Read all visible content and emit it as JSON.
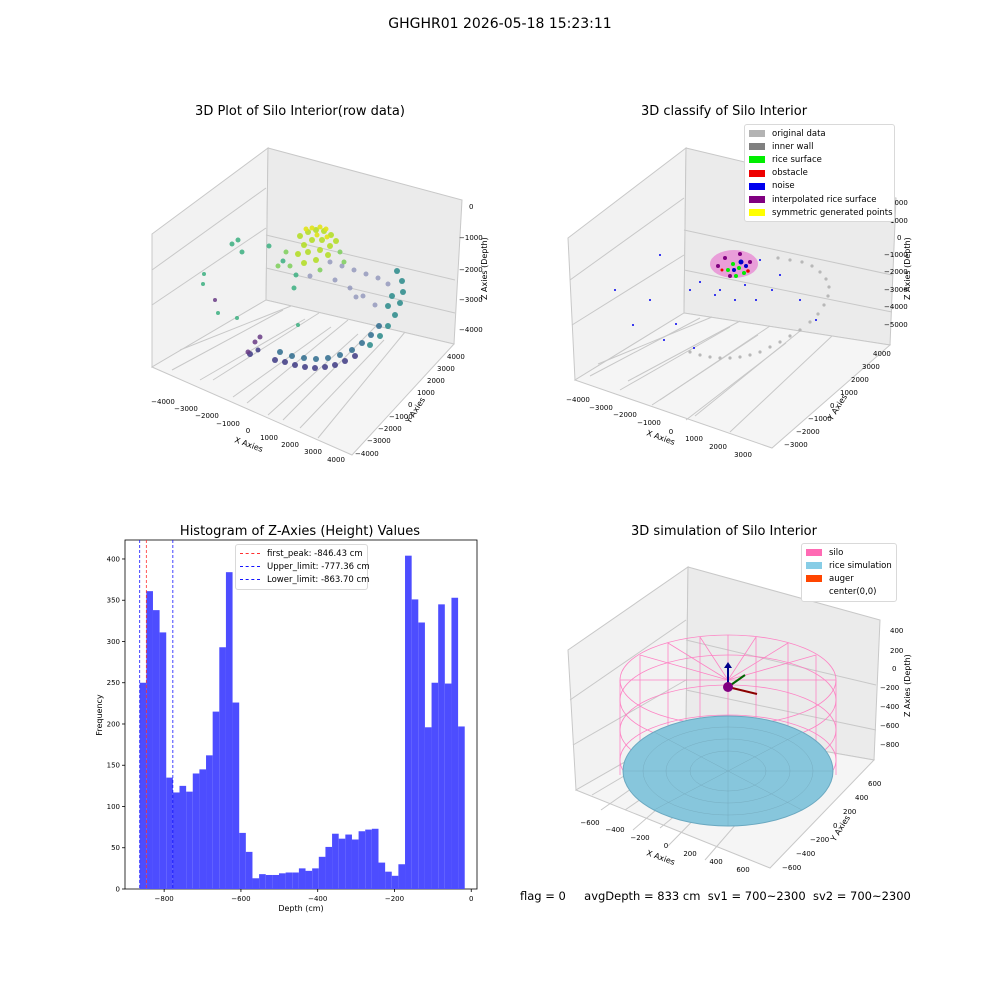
{
  "figure": {
    "suptitle": "GHGHR01 2026-05-18 15:23:11",
    "footer": {
      "flag": "flag = 0",
      "avg_depth": "avgDepth = 833 cm",
      "sv1": "sv1 = 700~2300",
      "sv2": "sv2 = 700~2300"
    }
  },
  "chart_data": [
    {
      "type": "scatter",
      "title": "3D Plot of Silo Interior(row data)",
      "xlabel": "X Axies",
      "ylabel": "Y Axies",
      "zlabel": "Z Axies (Depth)",
      "x_ticks": [
        "−4000",
        "−3000",
        "−2000",
        "−1000",
        "0",
        "1000",
        "2000",
        "3000",
        "4000"
      ],
      "y_ticks": [
        "−4000",
        "−3000",
        "−2000",
        "−1000",
        "0",
        "1000",
        "2000",
        "3000",
        "4000"
      ],
      "z_ticks": [
        "0",
        "−1000",
        "−2000",
        "−3000",
        "−4000"
      ],
      "colormap": "viridis"
    },
    {
      "type": "scatter",
      "title": "3D classify of Silo Interior",
      "xlabel": "X Axies",
      "ylabel": "Y Axies",
      "zlabel": "Z Axies (Depth)",
      "x_ticks": [
        "−4000",
        "−3000",
        "−2000",
        "−1000",
        "0",
        "1000",
        "2000",
        "3000"
      ],
      "y_ticks": [
        "−3000",
        "−2000",
        "−1000",
        "0",
        "1000",
        "2000",
        "3000",
        "4000"
      ],
      "z_ticks": [
        "2000",
        "1000",
        "0",
        "−1000",
        "−2000",
        "−3000",
        "−4000",
        "−5000"
      ],
      "legend": [
        {
          "label": "original data",
          "color": "#b3b3b3"
        },
        {
          "label": "inner wall",
          "color": "#808080"
        },
        {
          "label": "rice surface",
          "color": "#00ee00"
        },
        {
          "label": "obstacle",
          "color": "#ee0000"
        },
        {
          "label": "noise",
          "color": "#0000ee"
        },
        {
          "label": "interpolated rice surface",
          "color": "#800080"
        },
        {
          "label": "symmetric generated points",
          "color": "#ffff00"
        }
      ]
    },
    {
      "type": "bar",
      "title": "Histogram of Z-Axies (Height) Values",
      "xlabel": "Depth (cm)",
      "ylabel": "Frequency",
      "xlim": [
        -902,
        15
      ],
      "ylim": [
        0,
        423
      ],
      "x_ticks": [
        -800,
        -600,
        -400,
        -200,
        0
      ],
      "x_tick_labels": [
        "−800",
        "−600",
        "−400",
        "−200",
        "0"
      ],
      "y_ticks": [
        0,
        50,
        100,
        150,
        200,
        250,
        300,
        350,
        400
      ],
      "bar_color": "#4d4dff",
      "bin_start": -863.7,
      "bin_width": 17.28,
      "values": [
        250,
        361,
        338,
        311,
        135,
        117,
        125,
        118,
        140,
        145,
        162,
        215,
        293,
        384,
        226,
        68,
        45,
        13,
        18,
        17,
        17,
        19,
        20,
        20,
        25,
        22,
        25,
        39,
        51,
        67,
        61,
        66,
        60,
        70,
        72,
        73,
        32,
        21,
        16,
        30,
        404,
        351,
        323,
        196,
        250,
        345,
        249,
        353,
        197
      ],
      "vlines": [
        {
          "label": "first_peak: -846.43 cm",
          "x": -846.43,
          "color": "#ff3030"
        },
        {
          "label": "Upper_limit: -777.36 cm",
          "x": -777.36,
          "color": "#1414ff"
        },
        {
          "label": "Lower_limit: -863.70 cm",
          "x": -863.7,
          "color": "#1414ff"
        }
      ]
    },
    {
      "type": "scatter",
      "title": "3D simulation of Silo Interior",
      "xlabel": "X Axies",
      "ylabel": "Y Axies",
      "zlabel": "Z Axies (Depth)",
      "x_ticks": [
        "−600",
        "−400",
        "−200",
        "0",
        "200",
        "400",
        "600"
      ],
      "y_ticks": [
        "−600",
        "−400",
        "−200",
        "0",
        "200",
        "400",
        "600"
      ],
      "z_ticks": [
        "400",
        "200",
        "0",
        "−200",
        "−400",
        "−600",
        "−800"
      ],
      "legend": [
        {
          "label": "silo",
          "color": "#ff6ab4"
        },
        {
          "label": "rice simulation",
          "color": "#87cde6"
        },
        {
          "label": "auger",
          "color": "#ff4500"
        },
        {
          "label": "center(0,0)",
          "color": "#ffffff"
        }
      ]
    }
  ]
}
